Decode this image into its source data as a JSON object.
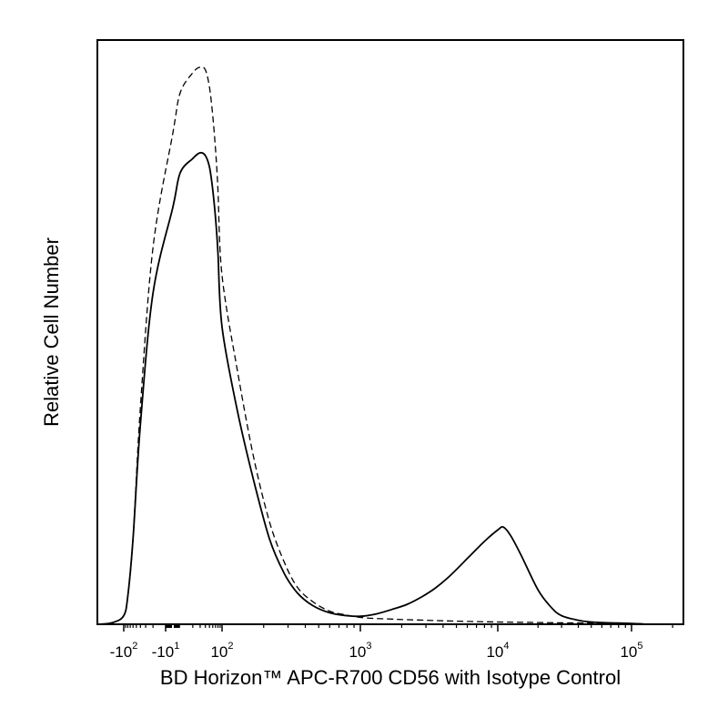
{
  "chart_data": {
    "type": "line",
    "chart_kind": "flow cytometry histogram overlay",
    "xlabel": "BD Horizon™ APC-R700 CD56 with Isotype Control",
    "ylabel": "Relative Cell Number",
    "x_scale": "biexponential (log with linear region near zero)",
    "xlim": [
      -200,
      200000
    ],
    "y_axis_ticks": "none",
    "grid": false,
    "legend": "none",
    "x_ticks": [
      {
        "value": -100,
        "base": "-10",
        "exp": "2"
      },
      {
        "value": -10,
        "base": "-10",
        "exp": "1"
      },
      {
        "value": 100,
        "base": "10",
        "exp": "2"
      },
      {
        "value": 1000,
        "base": "10",
        "exp": "3"
      },
      {
        "value": 10000,
        "base": "10",
        "exp": "4"
      },
      {
        "value": 100000,
        "base": "10",
        "exp": "5"
      }
    ],
    "series": [
      {
        "style": "solid",
        "x": [
          -150,
          -120,
          -100,
          -80,
          -60,
          -40,
          -20,
          0,
          10,
          20,
          30,
          40,
          50,
          60,
          70,
          80,
          100,
          130,
          170,
          220,
          280,
          350,
          450,
          600,
          800,
          1000,
          1300,
          1700,
          2200,
          2800,
          3500,
          4500,
          6000,
          8000,
          10000,
          11000,
          12500,
          15000,
          20000,
          25000,
          30000,
          40000,
          50000,
          60000,
          80000,
          100000,
          130000
        ],
        "y": [
          0,
          0.3,
          1.5,
          5,
          15,
          35,
          58,
          73,
          79,
          81.5,
          82.5,
          82,
          80,
          76,
          71,
          65,
          52,
          37,
          25,
          15,
          9,
          5.5,
          3.3,
          2,
          1.5,
          1.4,
          1.8,
          2.6,
          3.5,
          4.8,
          6.3,
          8.5,
          11.5,
          14.5,
          16.5,
          17,
          15.5,
          12,
          6,
          3,
          1.5,
          0.7,
          0.4,
          0.3,
          0.2,
          0.15,
          0
        ]
      },
      {
        "style": "dashed",
        "x": [
          -150,
          -120,
          -100,
          -80,
          -60,
          -40,
          -20,
          0,
          10,
          20,
          30,
          40,
          50,
          60,
          70,
          80,
          100,
          130,
          170,
          220,
          280,
          350,
          450,
          600,
          800,
          1000,
          1300,
          1700,
          2200,
          3000,
          4000,
          6000,
          10000,
          20000,
          50000,
          100000,
          130000
        ],
        "y": [
          0,
          0.3,
          1.5,
          5,
          15,
          38,
          66,
          86,
          93,
          96.5,
          97.5,
          97,
          94,
          89,
          83,
          76,
          61,
          44,
          29,
          18,
          11,
          6.5,
          4,
          2.3,
          1.6,
          1.2,
          1,
          0.9,
          0.8,
          0.7,
          0.6,
          0.5,
          0.4,
          0.3,
          0.2,
          0.15,
          0
        ]
      }
    ]
  }
}
